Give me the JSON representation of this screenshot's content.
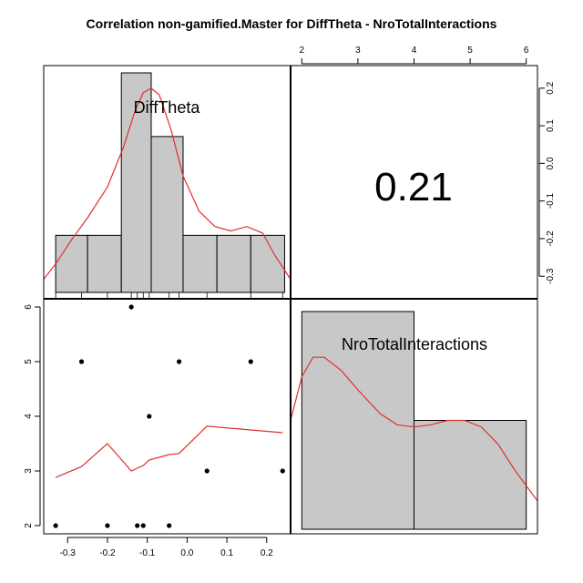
{
  "title": "Correlation non-gamified.Master for DiffTheta - NroTotalInteractions",
  "colors": {
    "bar_fill": "#c8c8c8",
    "curve": "#e03030",
    "axis": "#000000"
  },
  "chart_data": {
    "type": "pairs",
    "title": "Correlation non-gamified.Master for DiffTheta - NroTotalInteractions",
    "variables": [
      "DiffTheta",
      "NroTotalInteractions"
    ],
    "correlation": "0.21",
    "axes": {
      "x1": {
        "range": [
          -0.36,
          0.26
        ],
        "ticks": [
          "-0.3",
          "-0.2",
          "-0.1",
          "0.0",
          "0.1",
          "0.2"
        ],
        "values": [
          -0.3,
          -0.2,
          -0.1,
          0.0,
          0.1,
          0.2
        ]
      },
      "x2": {
        "range": [
          1.8,
          6.2
        ],
        "ticks": [
          "2",
          "3",
          "4",
          "5",
          "6"
        ],
        "values": [
          2,
          3,
          4,
          5,
          6
        ]
      },
      "y1": {
        "range": [
          -0.36,
          0.26
        ],
        "ticks": [
          "-0.3",
          "-0.2",
          "-0.1",
          "0.0",
          "0.1",
          "0.2"
        ],
        "values": [
          -0.3,
          -0.2,
          -0.1,
          0.0,
          0.1,
          0.2
        ]
      },
      "y2": {
        "range": [
          1.85,
          6.15
        ],
        "ticks": [
          "2",
          "3",
          "4",
          "5",
          "6"
        ],
        "values": [
          2,
          3,
          4,
          5,
          6
        ]
      }
    },
    "hist_difftheta": {
      "bins": [
        {
          "x0": -0.33,
          "x1": -0.25,
          "h": 0.26
        },
        {
          "x0": -0.25,
          "x1": -0.165,
          "h": 0.26
        },
        {
          "x0": -0.165,
          "x1": -0.09,
          "h": 1.0
        },
        {
          "x0": -0.09,
          "x1": -0.01,
          "h": 0.71
        },
        {
          "x0": -0.01,
          "x1": 0.075,
          "h": 0.26
        },
        {
          "x0": 0.075,
          "x1": 0.16,
          "h": 0.26
        },
        {
          "x0": 0.16,
          "x1": 0.245,
          "h": 0.26
        }
      ],
      "density": [
        {
          "x": -0.36,
          "h": 0.06
        },
        {
          "x": -0.33,
          "h": 0.13
        },
        {
          "x": -0.29,
          "h": 0.24
        },
        {
          "x": -0.25,
          "h": 0.34
        },
        {
          "x": -0.2,
          "h": 0.48
        },
        {
          "x": -0.16,
          "h": 0.66
        },
        {
          "x": -0.13,
          "h": 0.83
        },
        {
          "x": -0.11,
          "h": 0.91
        },
        {
          "x": -0.09,
          "h": 0.93
        },
        {
          "x": -0.07,
          "h": 0.9
        },
        {
          "x": -0.04,
          "h": 0.74
        },
        {
          "x": -0.01,
          "h": 0.53
        },
        {
          "x": 0.03,
          "h": 0.37
        },
        {
          "x": 0.07,
          "h": 0.3
        },
        {
          "x": 0.11,
          "h": 0.28
        },
        {
          "x": 0.15,
          "h": 0.3
        },
        {
          "x": 0.19,
          "h": 0.27
        },
        {
          "x": 0.22,
          "h": 0.17
        },
        {
          "x": 0.26,
          "h": 0.06
        }
      ],
      "rug": [
        -0.33,
        -0.265,
        -0.2,
        -0.14,
        -0.125,
        -0.11,
        -0.095,
        -0.045,
        -0.02,
        0.05,
        0.16,
        0.24
      ]
    },
    "hist_nrototal": {
      "bins": [
        {
          "x0": 2,
          "x1": 4,
          "h": 1.0
        },
        {
          "x0": 4,
          "x1": 6,
          "h": 0.5
        }
      ],
      "density": [
        {
          "x": 1.8,
          "h": 0.5
        },
        {
          "x": 2.0,
          "h": 0.7
        },
        {
          "x": 2.2,
          "h": 0.79
        },
        {
          "x": 2.4,
          "h": 0.79
        },
        {
          "x": 2.7,
          "h": 0.73
        },
        {
          "x": 3.0,
          "h": 0.64
        },
        {
          "x": 3.4,
          "h": 0.53
        },
        {
          "x": 3.7,
          "h": 0.48
        },
        {
          "x": 4.0,
          "h": 0.47
        },
        {
          "x": 4.3,
          "h": 0.48
        },
        {
          "x": 4.6,
          "h": 0.5
        },
        {
          "x": 4.9,
          "h": 0.5
        },
        {
          "x": 5.2,
          "h": 0.47
        },
        {
          "x": 5.5,
          "h": 0.39
        },
        {
          "x": 5.8,
          "h": 0.27
        },
        {
          "x": 6.2,
          "h": 0.13
        }
      ]
    },
    "scatter": [
      {
        "x": -0.33,
        "y": 2
      },
      {
        "x": -0.265,
        "y": 5
      },
      {
        "x": -0.2,
        "y": 2
      },
      {
        "x": -0.14,
        "y": 6
      },
      {
        "x": -0.125,
        "y": 2
      },
      {
        "x": -0.11,
        "y": 2
      },
      {
        "x": -0.095,
        "y": 4
      },
      {
        "x": -0.045,
        "y": 2
      },
      {
        "x": -0.02,
        "y": 5
      },
      {
        "x": 0.05,
        "y": 3
      },
      {
        "x": 0.16,
        "y": 5
      },
      {
        "x": 0.24,
        "y": 3
      }
    ],
    "smooth": [
      {
        "x": -0.33,
        "y": 2.88
      },
      {
        "x": -0.265,
        "y": 3.08
      },
      {
        "x": -0.2,
        "y": 3.5
      },
      {
        "x": -0.14,
        "y": 3.0
      },
      {
        "x": -0.125,
        "y": 3.05
      },
      {
        "x": -0.11,
        "y": 3.1
      },
      {
        "x": -0.095,
        "y": 3.2
      },
      {
        "x": -0.045,
        "y": 3.3
      },
      {
        "x": -0.02,
        "y": 3.32
      },
      {
        "x": 0.05,
        "y": 3.82
      },
      {
        "x": 0.16,
        "y": 3.75
      },
      {
        "x": 0.24,
        "y": 3.7
      }
    ]
  }
}
